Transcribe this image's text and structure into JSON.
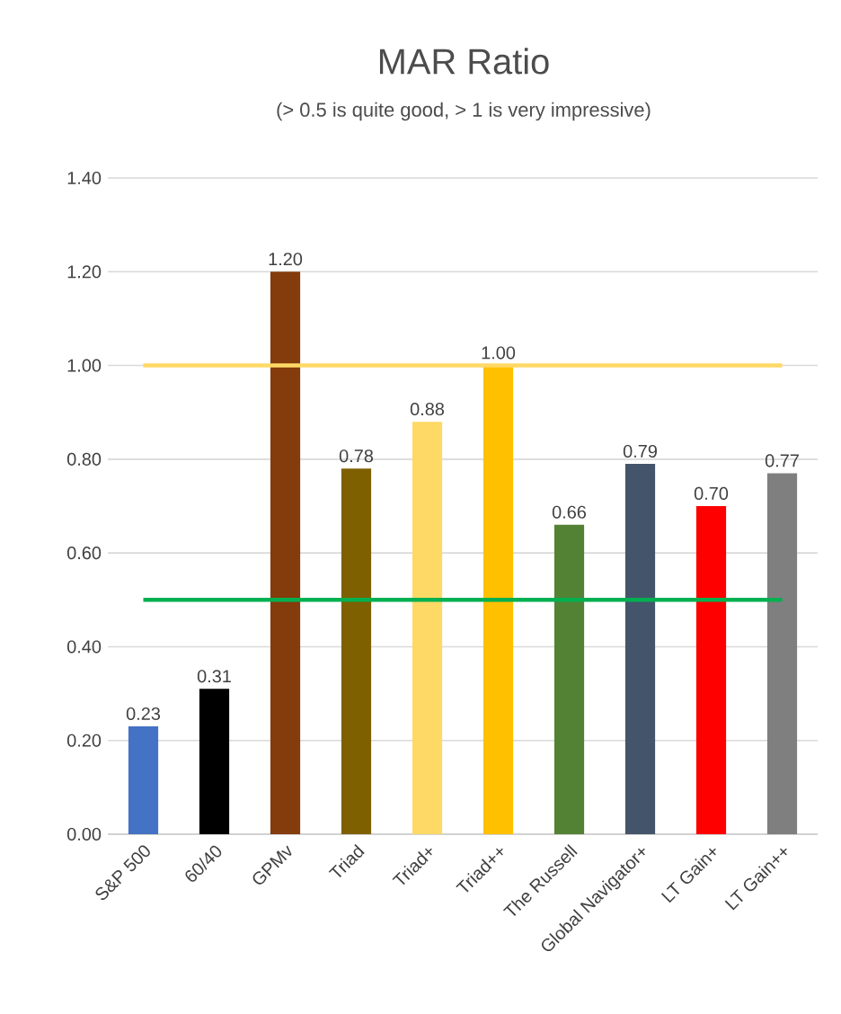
{
  "chart_data": {
    "type": "bar",
    "title": "MAR Ratio",
    "subtitle": "(> 0.5 is quite good, > 1 is very impressive)",
    "categories": [
      "S&P 500",
      "60/40",
      "GPMv",
      "Triad",
      "Triad+",
      "Triad++",
      "The Russell",
      "Global Navigator+",
      "LT Gain+",
      "LT Gain++"
    ],
    "values": [
      0.23,
      0.31,
      1.2,
      0.78,
      0.88,
      1.0,
      0.66,
      0.79,
      0.7,
      0.77
    ],
    "colors": [
      "#4472c4",
      "#000000",
      "#843c0c",
      "#7f6000",
      "#ffd966",
      "#ffc000",
      "#548235",
      "#44546a",
      "#ff0000",
      "#7f7f7f"
    ],
    "ylim": [
      0,
      1.4
    ],
    "yticks": [
      {
        "value": 0,
        "label": "0.00"
      },
      {
        "value": 0.2,
        "label": "0.20"
      },
      {
        "value": 0.4,
        "label": "0.40"
      },
      {
        "value": 0.6,
        "label": "0.60"
      },
      {
        "value": 0.8,
        "label": "0.80"
      },
      {
        "value": 1.0,
        "label": "1.00"
      },
      {
        "value": 1.2,
        "label": "1.20"
      },
      {
        "value": 1.4,
        "label": "1.40"
      }
    ],
    "value_labels": [
      "0.23",
      "0.31",
      "1.20",
      "0.78",
      "0.88",
      "1.00",
      "0.66",
      "0.79",
      "0.70",
      "0.77"
    ],
    "grid": "y",
    "ref_lines": [
      {
        "axis": "y",
        "value": 1.0,
        "color": "#ffd966"
      },
      {
        "axis": "y",
        "value": 0.5,
        "color": "#00b050"
      }
    ]
  }
}
